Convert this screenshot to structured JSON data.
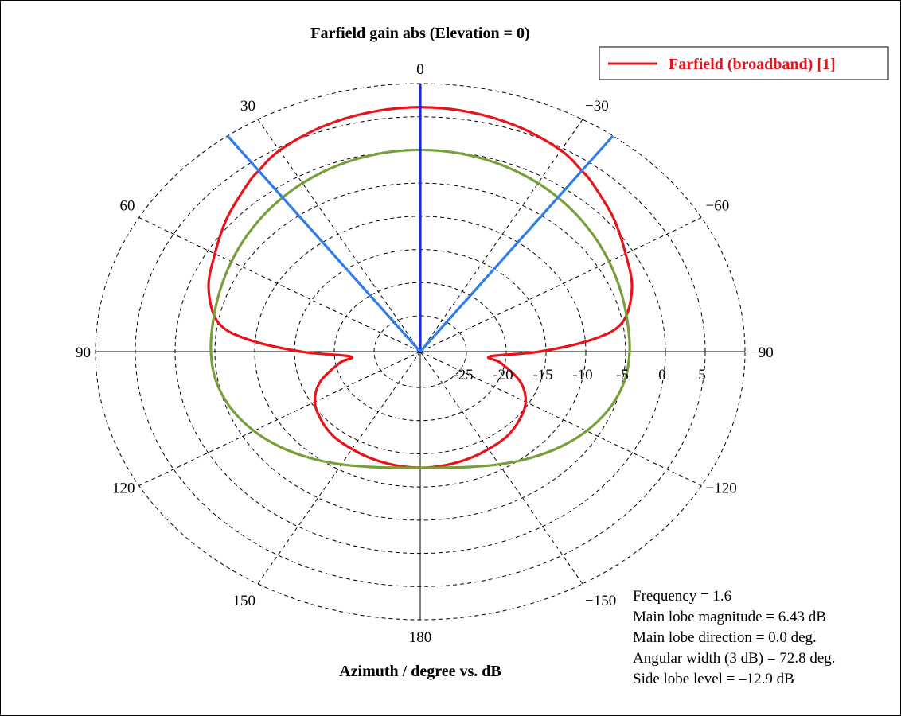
{
  "chart_data": {
    "type": "polar-line",
    "title": "Farfield gain abs (Elevation = 0)",
    "xlabel": "Azimuth / degree vs. dB",
    "radial_range": [
      -25,
      10
    ],
    "radial_ticks": [
      -25,
      -20,
      -15,
      -10,
      -5,
      0,
      5
    ],
    "radial_tick_labels": [
      "-25",
      "-20",
      "-15",
      "-10",
      "-5",
      "0",
      "5"
    ],
    "angle_ticks": [
      0,
      30,
      60,
      90,
      120,
      150,
      180,
      -150,
      -120,
      -90,
      -60,
      -30
    ],
    "angle_tick_labels": [
      "0",
      "30",
      "60",
      "90",
      "120",
      "150",
      "180",
      "−150",
      "−120",
      "−90",
      "−60",
      "−30"
    ],
    "grid": true,
    "legend_position": "top-right",
    "series": [
      {
        "name": "Farfield (broadband) [1]",
        "color": "#e8141b",
        "angles": [
          0,
          10,
          20,
          30,
          36.4,
          40,
          50,
          60,
          70,
          80,
          85,
          90,
          95,
          100,
          110,
          120,
          130,
          140,
          150,
          160,
          170,
          180,
          -170,
          -160,
          -150,
          -140,
          -130,
          -120,
          -110,
          -100,
          -95,
          -90,
          -85,
          -80,
          -70,
          -60,
          -50,
          -40,
          -36.4,
          -30,
          -20,
          -10
        ],
        "values": [
          6.43,
          6.2,
          5.6,
          4.6,
          3.43,
          2.8,
          0.9,
          -1.0,
          -2.5,
          -5.0,
          -9.0,
          -15.8,
          -22.0,
          -20.5,
          -17.5,
          -15.5,
          -14.5,
          -13.8,
          -13.5,
          -13.2,
          -13.0,
          -12.9,
          -13.0,
          -13.2,
          -13.5,
          -13.8,
          -14.5,
          -15.5,
          -17.5,
          -20.5,
          -22.0,
          -15.8,
          -9.0,
          -5.0,
          -2.5,
          -1.0,
          0.9,
          2.8,
          3.43,
          4.6,
          5.6,
          6.2
        ]
      },
      {
        "name": "",
        "color": "#76a03a",
        "angles": [
          0,
          90,
          180,
          -90
        ],
        "values": [
          0.0,
          -4.5,
          -12.9,
          -4.5
        ]
      }
    ],
    "markers": [
      {
        "type": "main-lobe",
        "angle": 0,
        "color": "#1a29e0"
      },
      {
        "type": "3dB-beamwidth",
        "angle": 36.4,
        "color": "#2f7de8"
      },
      {
        "type": "3dB-beamwidth",
        "angle": -36.4,
        "color": "#2f7de8"
      }
    ],
    "annotations": [
      "Frequency = 1.6",
      "Main lobe magnitude = 6.43 dB",
      "Main lobe direction = 0.0 deg.",
      "Angular width (3 dB) = 72.8 deg.",
      "Side lobe level = –12.9 dB"
    ]
  }
}
